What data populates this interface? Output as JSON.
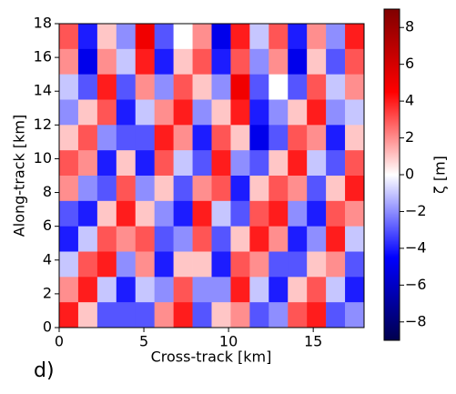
{
  "chart_data": {
    "type": "heatmap",
    "colormap": "seismic",
    "x_label": "Cross-track [km]",
    "y_label": "Along-track [km]",
    "colorbar_label": "ζ [m]",
    "panel_label": "d)",
    "xlim": [
      0,
      18
    ],
    "ylim": [
      0,
      18
    ],
    "xticks": [
      0,
      5,
      10,
      15
    ],
    "yticks": [
      0,
      2,
      4,
      6,
      8,
      10,
      12,
      14,
      16,
      18
    ],
    "zlim": [
      -9,
      9
    ],
    "zticks": [
      {
        "value": -8,
        "label": "−8"
      },
      {
        "value": -6,
        "label": "−6"
      },
      {
        "value": -4,
        "label": "−4"
      },
      {
        "value": -2,
        "label": "−2"
      },
      0,
      2,
      4,
      6,
      8
    ],
    "z": [
      [
        3,
        -4,
        1,
        -2,
        5,
        -3,
        0,
        2,
        -5,
        4,
        -1,
        3,
        -4,
        2,
        -2,
        4
      ],
      [
        2,
        -5,
        2,
        -1,
        4,
        -4,
        1,
        3,
        -4,
        3,
        -2,
        2,
        -5,
        1,
        -3,
        3
      ],
      [
        -1,
        -3,
        4,
        -3,
        2,
        -2,
        3,
        1,
        -2,
        5,
        -3,
        0,
        -3,
        3,
        -1,
        2
      ],
      [
        -2,
        1,
        3,
        -4,
        -1,
        2,
        4,
        -2,
        1,
        4,
        -4,
        -2,
        1,
        4,
        -2,
        -1
      ],
      [
        1,
        3,
        -2,
        -3,
        -3,
        4,
        2,
        -4,
        3,
        1,
        -5,
        -3,
        3,
        2,
        -4,
        1
      ],
      [
        3,
        2,
        -4,
        1,
        -4,
        3,
        -1,
        -3,
        4,
        -2,
        -3,
        1,
        4,
        -1,
        -3,
        3
      ],
      [
        2,
        -2,
        -3,
        3,
        -2,
        1,
        -3,
        2,
        3,
        -4,
        1,
        3,
        2,
        -3,
        1,
        4
      ],
      [
        -3,
        -4,
        1,
        4,
        1,
        -2,
        -4,
        4,
        -1,
        -3,
        3,
        4,
        -2,
        -4,
        3,
        2
      ],
      [
        -4,
        -1,
        3,
        2,
        3,
        -3,
        -2,
        3,
        -3,
        1,
        4,
        2,
        -4,
        -2,
        4,
        -1
      ],
      [
        -1,
        3,
        4,
        -2,
        2,
        -4,
        1,
        1,
        -4,
        3,
        2,
        -3,
        -3,
        1,
        2,
        -3
      ],
      [
        2,
        4,
        -1,
        -4,
        -1,
        -2,
        3,
        -2,
        -2,
        4,
        -1,
        -4,
        1,
        3,
        -1,
        -4
      ],
      [
        4,
        1,
        -3,
        -3,
        -3,
        2,
        4,
        -3,
        1,
        2,
        -3,
        -2,
        3,
        4,
        -3,
        -2
      ]
    ]
  }
}
